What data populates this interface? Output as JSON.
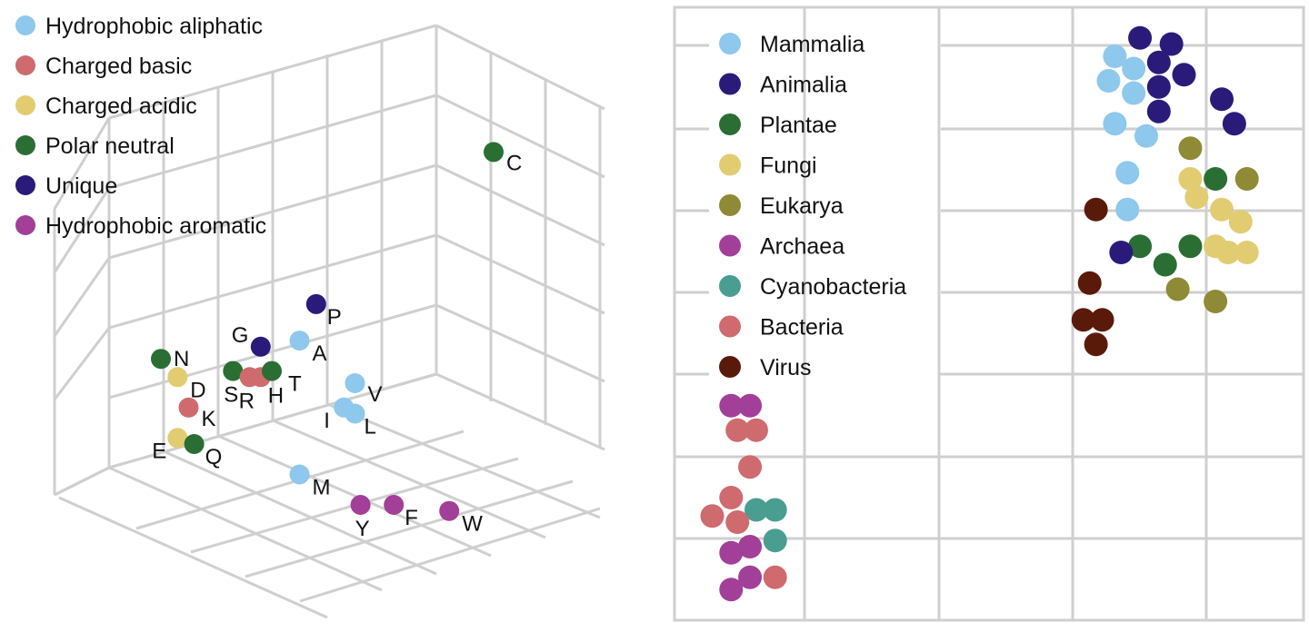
{
  "chart_data": [
    {
      "type": "scatter",
      "projection": "3d",
      "grid": true,
      "legend_position": "top-left",
      "legend": [
        {
          "name": "Hydrophobic aliphatic",
          "color": "#8ec8ec"
        },
        {
          "name": "Charged basic",
          "color": "#cf6a6e"
        },
        {
          "name": "Charged acidic",
          "color": "#e2cc72"
        },
        {
          "name": "Polar neutral",
          "color": "#2a6e34"
        },
        {
          "name": "Unique",
          "color": "#2a1b7a"
        },
        {
          "name": "Hydrophobic aromatic",
          "color": "#a23f98"
        }
      ],
      "points": [
        {
          "label": "C",
          "group": 3,
          "x": 0.8,
          "y": 0.78
        },
        {
          "label": "P",
          "group": 4,
          "x": 0.48,
          "y": 0.53
        },
        {
          "label": "G",
          "group": 4,
          "x": 0.38,
          "y": 0.46
        },
        {
          "label": "A",
          "group": 0,
          "x": 0.45,
          "y": 0.47
        },
        {
          "label": "N",
          "group": 3,
          "x": 0.2,
          "y": 0.44
        },
        {
          "label": "D",
          "group": 2,
          "x": 0.23,
          "y": 0.41
        },
        {
          "label": "S",
          "group": 3,
          "x": 0.33,
          "y": 0.42
        },
        {
          "label": "R",
          "group": 1,
          "x": 0.36,
          "y": 0.41
        },
        {
          "label": "H",
          "group": 1,
          "x": 0.38,
          "y": 0.41
        },
        {
          "label": "T",
          "group": 3,
          "x": 0.4,
          "y": 0.42
        },
        {
          "label": "V",
          "group": 0,
          "x": 0.55,
          "y": 0.4
        },
        {
          "label": "I",
          "group": 0,
          "x": 0.53,
          "y": 0.36
        },
        {
          "label": "L",
          "group": 0,
          "x": 0.55,
          "y": 0.35
        },
        {
          "label": "K",
          "group": 1,
          "x": 0.25,
          "y": 0.36
        },
        {
          "label": "E",
          "group": 2,
          "x": 0.23,
          "y": 0.31
        },
        {
          "label": "Q",
          "group": 3,
          "x": 0.26,
          "y": 0.3
        },
        {
          "label": "M",
          "group": 0,
          "x": 0.45,
          "y": 0.25
        },
        {
          "label": "Y",
          "group": 5,
          "x": 0.56,
          "y": 0.2
        },
        {
          "label": "F",
          "group": 5,
          "x": 0.62,
          "y": 0.2
        },
        {
          "label": "W",
          "group": 5,
          "x": 0.72,
          "y": 0.19
        }
      ]
    },
    {
      "type": "scatter",
      "grid": true,
      "legend_position": "top-left",
      "xlim": [
        0,
        1
      ],
      "ylim": [
        0,
        1
      ],
      "legend": [
        {
          "name": "Mammalia",
          "color": "#8ec8ec"
        },
        {
          "name": "Animalia",
          "color": "#2a1b7a"
        },
        {
          "name": "Plantae",
          "color": "#2a6e34"
        },
        {
          "name": "Fungi",
          "color": "#e2cc72"
        },
        {
          "name": "Eukarya",
          "color": "#8e8a35"
        },
        {
          "name": "Archaea",
          "color": "#a23f98"
        },
        {
          "name": "Cyanobacteria",
          "color": "#4a9e91"
        },
        {
          "name": "Bacteria",
          "color": "#cf6a6e"
        },
        {
          "name": "Virus",
          "color": "#5a1a0a"
        }
      ],
      "points": [
        {
          "g": 1,
          "x": 0.74,
          "y": 0.95
        },
        {
          "g": 1,
          "x": 0.79,
          "y": 0.94
        },
        {
          "g": 1,
          "x": 0.77,
          "y": 0.91
        },
        {
          "g": 1,
          "x": 0.81,
          "y": 0.89
        },
        {
          "g": 1,
          "x": 0.77,
          "y": 0.87
        },
        {
          "g": 1,
          "x": 0.87,
          "y": 0.85
        },
        {
          "g": 1,
          "x": 0.77,
          "y": 0.83
        },
        {
          "g": 1,
          "x": 0.89,
          "y": 0.81
        },
        {
          "g": 0,
          "x": 0.7,
          "y": 0.92
        },
        {
          "g": 0,
          "x": 0.73,
          "y": 0.9
        },
        {
          "g": 0,
          "x": 0.69,
          "y": 0.88
        },
        {
          "g": 0,
          "x": 0.73,
          "y": 0.86
        },
        {
          "g": 0,
          "x": 0.7,
          "y": 0.81
        },
        {
          "g": 0,
          "x": 0.75,
          "y": 0.79
        },
        {
          "g": 0,
          "x": 0.72,
          "y": 0.73
        },
        {
          "g": 0,
          "x": 0.72,
          "y": 0.67
        },
        {
          "g": 4,
          "x": 0.82,
          "y": 0.77
        },
        {
          "g": 4,
          "x": 0.91,
          "y": 0.72
        },
        {
          "g": 4,
          "x": 0.8,
          "y": 0.54
        },
        {
          "g": 4,
          "x": 0.86,
          "y": 0.52
        },
        {
          "g": 3,
          "x": 0.82,
          "y": 0.72
        },
        {
          "g": 3,
          "x": 0.83,
          "y": 0.69
        },
        {
          "g": 3,
          "x": 0.87,
          "y": 0.67
        },
        {
          "g": 3,
          "x": 0.9,
          "y": 0.65
        },
        {
          "g": 3,
          "x": 0.86,
          "y": 0.61
        },
        {
          "g": 3,
          "x": 0.88,
          "y": 0.6
        },
        {
          "g": 3,
          "x": 0.91,
          "y": 0.6
        },
        {
          "g": 2,
          "x": 0.86,
          "y": 0.72
        },
        {
          "g": 2,
          "x": 0.74,
          "y": 0.61
        },
        {
          "g": 2,
          "x": 0.78,
          "y": 0.58
        },
        {
          "g": 2,
          "x": 0.82,
          "y": 0.61
        },
        {
          "g": 1,
          "x": 0.71,
          "y": 0.6
        },
        {
          "g": 8,
          "x": 0.67,
          "y": 0.67
        },
        {
          "g": 8,
          "x": 0.66,
          "y": 0.55
        },
        {
          "g": 8,
          "x": 0.65,
          "y": 0.49
        },
        {
          "g": 8,
          "x": 0.68,
          "y": 0.49
        },
        {
          "g": 8,
          "x": 0.67,
          "y": 0.45
        },
        {
          "g": 5,
          "x": 0.09,
          "y": 0.35
        },
        {
          "g": 5,
          "x": 0.12,
          "y": 0.35
        },
        {
          "g": 7,
          "x": 0.1,
          "y": 0.31
        },
        {
          "g": 7,
          "x": 0.13,
          "y": 0.31
        },
        {
          "g": 7,
          "x": 0.12,
          "y": 0.25
        },
        {
          "g": 7,
          "x": 0.09,
          "y": 0.2
        },
        {
          "g": 6,
          "x": 0.13,
          "y": 0.18
        },
        {
          "g": 6,
          "x": 0.16,
          "y": 0.18
        },
        {
          "g": 7,
          "x": 0.06,
          "y": 0.17
        },
        {
          "g": 7,
          "x": 0.1,
          "y": 0.16
        },
        {
          "g": 6,
          "x": 0.16,
          "y": 0.13
        },
        {
          "g": 5,
          "x": 0.12,
          "y": 0.12
        },
        {
          "g": 5,
          "x": 0.09,
          "y": 0.11
        },
        {
          "g": 5,
          "x": 0.12,
          "y": 0.07
        },
        {
          "g": 7,
          "x": 0.16,
          "y": 0.07
        },
        {
          "g": 5,
          "x": 0.09,
          "y": 0.05
        }
      ]
    }
  ]
}
